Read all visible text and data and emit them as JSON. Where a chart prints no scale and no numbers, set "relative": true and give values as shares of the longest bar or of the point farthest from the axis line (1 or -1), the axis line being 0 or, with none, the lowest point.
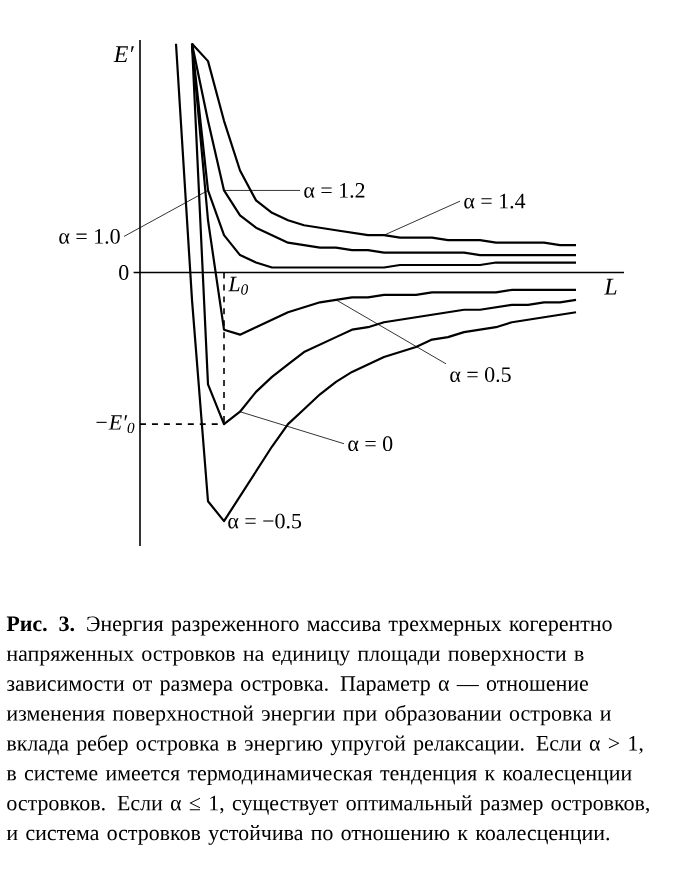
{
  "chart_data": {
    "type": "line",
    "relative": true,
    "xlabel": "L",
    "ylabel": "E′",
    "categories": [
      null,
      null,
      null,
      null,
      null,
      null,
      null,
      null,
      null,
      null,
      null,
      null,
      null,
      null,
      null,
      null,
      null,
      null,
      null,
      null,
      null,
      null,
      null,
      null,
      null,
      null
    ],
    "series": [
      {
        "name": "α = 1.4",
        "color": "#000000",
        "values": [
          null,
          0.92,
          0.85,
          0.61,
          0.41,
          0.29,
          0.24,
          0.21,
          0.19,
          0.18,
          0.17,
          0.16,
          0.15,
          0.15,
          0.14,
          0.14,
          0.14,
          0.13,
          0.13,
          0.13,
          0.12,
          0.12,
          0.12,
          0.12,
          0.11,
          0.11
        ]
      },
      {
        "name": "α = 1.2",
        "color": "#000000",
        "values": [
          null,
          0.92,
          0.61,
          0.33,
          0.23,
          0.18,
          0.15,
          0.12,
          0.11,
          0.1,
          0.1,
          0.09,
          0.09,
          0.08,
          0.08,
          0.08,
          0.08,
          0.08,
          0.08,
          0.07,
          0.07,
          0.07,
          0.07,
          0.07,
          0.07,
          0.07
        ]
      },
      {
        "name": "α = 1.0",
        "color": "#000000",
        "values": [
          null,
          0.92,
          0.33,
          0.15,
          0.07,
          0.04,
          0.02,
          0.02,
          0.02,
          0.02,
          0.02,
          0.02,
          0.02,
          0.02,
          0.03,
          0.03,
          0.03,
          0.03,
          0.03,
          0.03,
          0.04,
          0.04,
          0.04,
          0.04,
          0.04,
          0.04
        ]
      },
      {
        "name": "α = 0.5",
        "color": "#000000",
        "values": [
          null,
          0.92,
          0.21,
          -0.23,
          -0.25,
          -0.22,
          -0.19,
          -0.16,
          -0.14,
          -0.12,
          -0.11,
          -0.1,
          -0.1,
          -0.09,
          -0.09,
          -0.09,
          -0.08,
          -0.08,
          -0.08,
          -0.08,
          -0.08,
          -0.07,
          -0.07,
          -0.07,
          -0.07,
          -0.07
        ]
      },
      {
        "name": "α = 0",
        "color": "#000000",
        "values": [
          null,
          0.92,
          -0.45,
          -0.61,
          -0.56,
          -0.48,
          -0.42,
          -0.37,
          -0.32,
          -0.29,
          -0.26,
          -0.23,
          -0.22,
          -0.2,
          -0.19,
          -0.18,
          -0.17,
          -0.16,
          -0.15,
          -0.15,
          -0.14,
          -0.13,
          -0.13,
          -0.12,
          -0.12,
          -0.11
        ]
      },
      {
        "name": "α = −0.5",
        "color": "#000000",
        "values": [
          0.92,
          -0.11,
          -0.92,
          -1.0,
          -0.9,
          -0.8,
          -0.7,
          -0.61,
          -0.55,
          -0.49,
          -0.44,
          -0.4,
          -0.37,
          -0.34,
          -0.32,
          -0.3,
          -0.27,
          -0.26,
          -0.24,
          -0.23,
          -0.22,
          -0.2,
          -0.19,
          -0.18,
          -0.17,
          -0.16
        ]
      }
    ],
    "ref_lines": [
      {
        "axis": "y",
        "value": 0,
        "label": "0"
      },
      {
        "axis": "y",
        "value": -0.61,
        "label": "−E′$_{0}$",
        "line_style": "dashed"
      }
    ],
    "annotations": [
      "L$_{0}$",
      "**Рис. 3.** Энергия разреженного массива трехмерных когерентно напряженных островков на единицу площади поверхности в зависимости от размера островка. Параметр α — отношение изменения поверхностной энергии при образовании островка и вклада ребер островка в энергию упругой релаксации. Если α > 1, в системе имеется термодинамическая тенденция к коалесценции островков. Если α ≤ 1, существует оптимальный размер островков, и система островков устойчива по отношению к коалесценции."
    ]
  }
}
